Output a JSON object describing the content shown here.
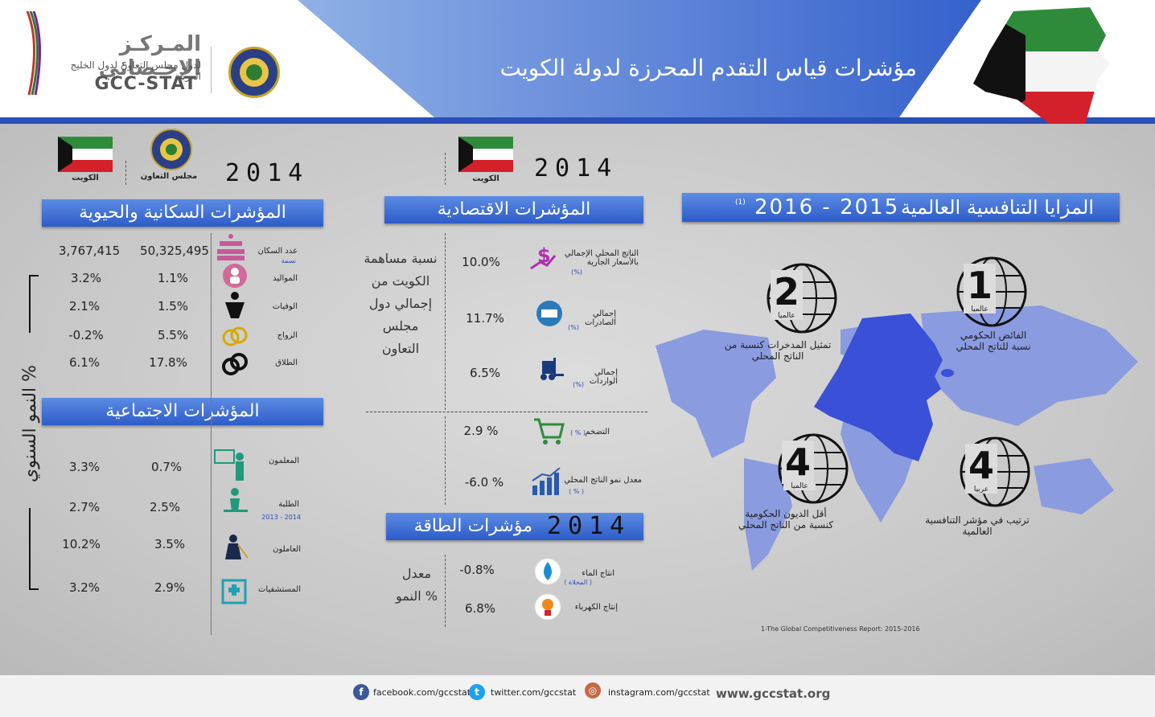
{
  "header": {
    "title": "مؤشرات قياس التقدم المحرزة  لدولة الكويت",
    "logo_ar": "المـركـز الإحـصائي",
    "logo_sub": "لدول مجلس التعاون لدول الخليج العربية",
    "logo_en": "GCC-STAT"
  },
  "colors": {
    "accent": "#2d5cc8",
    "map": "#8a9be0",
    "kuwait": "#3a50d6"
  },
  "left": {
    "year": "2014",
    "col_kuwait": "الكويت",
    "col_gcc": "مجلس التعاون",
    "side_label": "النمو السنوي %",
    "population": {
      "title": "المؤشرات السكانية والحيوية",
      "rows": [
        {
          "label": "عدد السكان",
          "sub": "نسمة",
          "gcc": "50,325,495",
          "kw": "3,767,415",
          "icon": "population-icon"
        },
        {
          "label": "المواليد",
          "gcc": "1.1%",
          "kw": "3.2%",
          "icon": "baby-icon"
        },
        {
          "label": "الوفيات",
          "gcc": "1.5%",
          "kw": "2.1%",
          "icon": "deaths-icon"
        },
        {
          "label": "الزواج",
          "gcc": "5.5%",
          "kw": "-0.2%",
          "icon": "rings-icon"
        },
        {
          "label": "الطلاق",
          "gcc": "17.8%",
          "kw": "6.1%",
          "icon": "divorce-icon"
        }
      ]
    },
    "social": {
      "title": "المؤشرات الاجتماعية",
      "rows": [
        {
          "label": "المعلمون",
          "gcc": "0.7%",
          "kw": "3.3%",
          "icon": "teacher-icon"
        },
        {
          "label": "الطلبة",
          "sub": "2013 - 2014",
          "gcc": "2.5%",
          "kw": "2.7%",
          "icon": "student-icon"
        },
        {
          "label": "العاملون",
          "gcc": "3.5%",
          "kw": "10.2%",
          "icon": "worker-icon"
        },
        {
          "label": "المستشفيات",
          "gcc": "2.9%",
          "kw": "3.2%",
          "icon": "hospital-icon"
        }
      ]
    }
  },
  "middle": {
    "year": "2014",
    "col_kuwait": "الكويت",
    "economic": {
      "title": "المؤشرات الاقتصادية",
      "share_label": "نسبة مساهمة الكويت من إجمالي دول مجلس التعاون",
      "rows": [
        {
          "label": "الناتج المحلي الإجمالي بالأسعار الجارية",
          "unit": "(%)",
          "value": "10.0%",
          "icon": "gdp-icon"
        },
        {
          "label": "إجمالي الصادرات",
          "unit": "(%)",
          "value": "11.7%",
          "icon": "export-ship-icon"
        },
        {
          "label": "إجمالي الواردات",
          "unit": "(%)",
          "value": "6.5%",
          "icon": "forklift-icon"
        }
      ],
      "rows2": [
        {
          "label": "التضخم",
          "unit": "( % )",
          "value": "2.9 %",
          "icon": "cart-icon"
        },
        {
          "label": "معدل نمو الناتج المحلي",
          "unit": "( % )",
          "value": "-6.0 %",
          "icon": "growth-chart-icon"
        }
      ]
    },
    "energy": {
      "title": "مؤشرات الطاقة",
      "year": "2014",
      "growth_label": "معدل النمو %",
      "rows": [
        {
          "label": "انتاج الماء",
          "tag": "( المحلاة )",
          "value": "-0.8%",
          "icon": "water-drop-icon"
        },
        {
          "label": "إنتاج الكهرباء",
          "value": "6.8%",
          "icon": "bulb-icon"
        }
      ]
    }
  },
  "right": {
    "title": "المزايا التنافسية العالمية",
    "years": "2016  -  2015",
    "note_mark": "(1)",
    "items": [
      {
        "number": "1",
        "scope": "عالميا",
        "label": "الفائض الحكومي نسبة للناتج المحلي"
      },
      {
        "number": "2",
        "scope": "عالميا",
        "label": "تمثيل المدخرات كنسبة من الناتج المحلي"
      },
      {
        "number": "4",
        "scope": "عالميا",
        "label": "أقل الديون الحكومية كنسبة من الناتج المحلي"
      },
      {
        "number": "4",
        "scope": "عربيا",
        "label": "ترتيب في مؤشر التنافسية العالمية"
      }
    ],
    "footnote": "1-The Global Competitiveness Report: 2015-2016"
  },
  "footer": {
    "facebook": "facebook.com/gccstat",
    "twitter": "twitter.com/gccstat",
    "instagram": "instagram.com/gccstat",
    "website": "www.gccstat.org"
  }
}
